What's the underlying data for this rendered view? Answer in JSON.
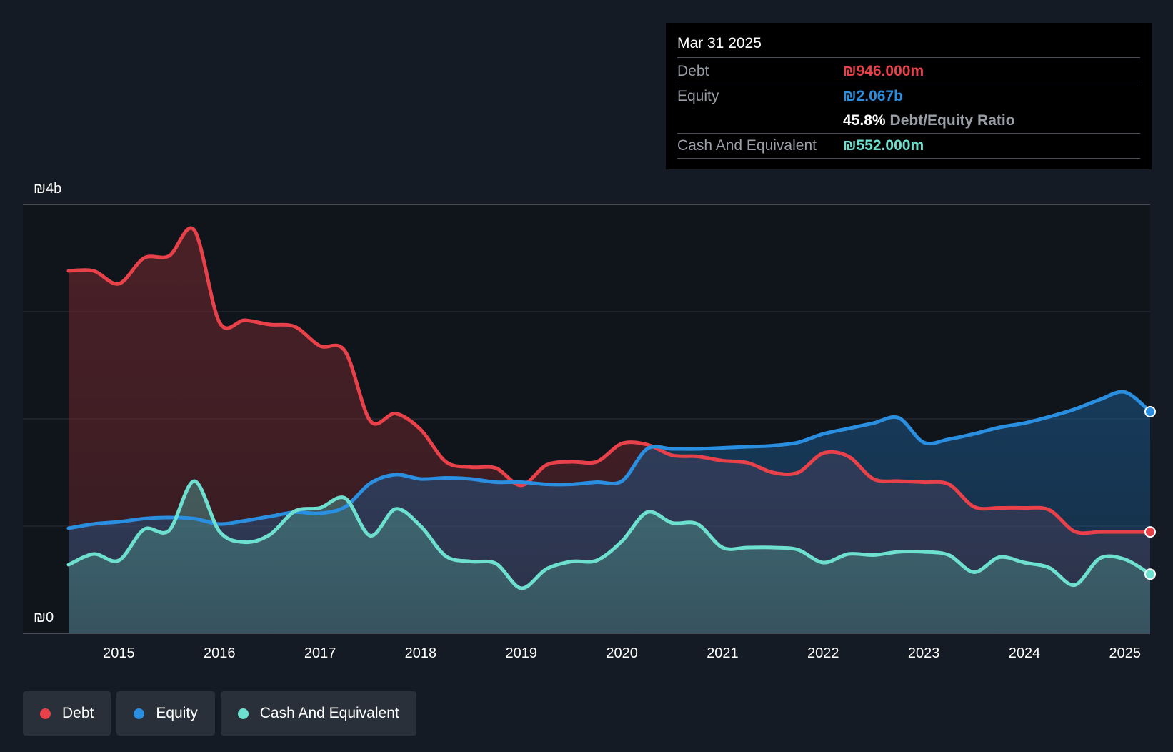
{
  "tooltip": {
    "date": "Mar 31 2025",
    "debt_label": "Debt",
    "debt_value": "₪946.000m",
    "equity_label": "Equity",
    "equity_value": "₪2.067b",
    "ratio_value": "45.8%",
    "ratio_label": "Debt/Equity Ratio",
    "cash_label": "Cash And Equivalent",
    "cash_value": "₪552.000m"
  },
  "legend": [
    {
      "label": "Debt",
      "color": "#e8414a"
    },
    {
      "label": "Equity",
      "color": "#2a8fe0"
    },
    {
      "label": "Cash And Equivalent",
      "color": "#6ee0cf"
    }
  ],
  "chart_data": {
    "type": "area",
    "y_top_label": "₪4b",
    "y_bottom_label": "₪0",
    "ylim": [
      0,
      4
    ],
    "y_unit": "billions ₪",
    "x_range": [
      2014.5,
      2025.25
    ],
    "x_ticks": [
      "2015",
      "2016",
      "2017",
      "2018",
      "2019",
      "2020",
      "2021",
      "2022",
      "2023",
      "2024",
      "2025"
    ],
    "grid": true,
    "series": [
      {
        "name": "Debt",
        "color": "#e8414a",
        "x": [
          2014.5,
          2014.75,
          2015.0,
          2015.25,
          2015.5,
          2015.75,
          2016.0,
          2016.25,
          2016.5,
          2016.75,
          2017.0,
          2017.25,
          2017.5,
          2017.75,
          2018.0,
          2018.25,
          2018.5,
          2018.75,
          2019.0,
          2019.25,
          2019.5,
          2019.75,
          2020.0,
          2020.25,
          2020.5,
          2020.75,
          2021.0,
          2021.25,
          2021.5,
          2021.75,
          2022.0,
          2022.25,
          2022.5,
          2022.75,
          2023.0,
          2023.25,
          2023.5,
          2023.75,
          2024.0,
          2024.25,
          2024.5,
          2024.75,
          2025.0,
          2025.25
        ],
        "values": [
          3.38,
          3.38,
          3.26,
          3.5,
          3.52,
          3.76,
          2.9,
          2.92,
          2.88,
          2.86,
          2.68,
          2.63,
          1.98,
          2.05,
          1.9,
          1.6,
          1.55,
          1.54,
          1.38,
          1.57,
          1.6,
          1.6,
          1.77,
          1.76,
          1.66,
          1.65,
          1.61,
          1.59,
          1.5,
          1.5,
          1.68,
          1.65,
          1.44,
          1.42,
          1.41,
          1.39,
          1.18,
          1.17,
          1.17,
          1.15,
          0.95,
          0.946,
          0.946,
          0.946
        ]
      },
      {
        "name": "Equity",
        "color": "#2a8fe0",
        "x": [
          2014.5,
          2014.75,
          2015.0,
          2015.25,
          2015.5,
          2015.75,
          2016.0,
          2016.25,
          2016.5,
          2016.75,
          2017.0,
          2017.25,
          2017.5,
          2017.75,
          2018.0,
          2018.25,
          2018.5,
          2018.75,
          2019.0,
          2019.25,
          2019.5,
          2019.75,
          2020.0,
          2020.25,
          2020.5,
          2020.75,
          2021.0,
          2021.25,
          2021.5,
          2021.75,
          2022.0,
          2022.25,
          2022.5,
          2022.75,
          2023.0,
          2023.25,
          2023.5,
          2023.75,
          2024.0,
          2024.25,
          2024.5,
          2024.75,
          2025.0,
          2025.25
        ],
        "values": [
          0.98,
          1.02,
          1.04,
          1.07,
          1.08,
          1.07,
          1.02,
          1.05,
          1.09,
          1.13,
          1.12,
          1.18,
          1.4,
          1.48,
          1.44,
          1.45,
          1.44,
          1.41,
          1.41,
          1.39,
          1.39,
          1.41,
          1.42,
          1.72,
          1.72,
          1.72,
          1.73,
          1.74,
          1.75,
          1.78,
          1.86,
          1.91,
          1.96,
          2.01,
          1.78,
          1.81,
          1.86,
          1.92,
          1.96,
          2.02,
          2.09,
          2.18,
          2.25,
          2.067
        ]
      },
      {
        "name": "Cash And Equivalent",
        "color": "#6ee0cf",
        "x": [
          2014.5,
          2014.75,
          2015.0,
          2015.25,
          2015.5,
          2015.75,
          2016.0,
          2016.25,
          2016.5,
          2016.75,
          2017.0,
          2017.25,
          2017.5,
          2017.75,
          2018.0,
          2018.25,
          2018.5,
          2018.75,
          2019.0,
          2019.25,
          2019.5,
          2019.75,
          2020.0,
          2020.25,
          2020.5,
          2020.75,
          2021.0,
          2021.25,
          2021.5,
          2021.75,
          2022.0,
          2022.25,
          2022.5,
          2022.75,
          2023.0,
          2023.25,
          2023.5,
          2023.75,
          2024.0,
          2024.25,
          2024.5,
          2024.75,
          2025.0,
          2025.25
        ],
        "values": [
          0.64,
          0.74,
          0.68,
          0.97,
          0.96,
          1.42,
          0.95,
          0.85,
          0.92,
          1.14,
          1.17,
          1.26,
          0.91,
          1.16,
          1.0,
          0.72,
          0.67,
          0.65,
          0.42,
          0.6,
          0.67,
          0.68,
          0.86,
          1.13,
          1.03,
          1.02,
          0.8,
          0.8,
          0.8,
          0.78,
          0.66,
          0.74,
          0.73,
          0.76,
          0.76,
          0.73,
          0.57,
          0.71,
          0.66,
          0.61,
          0.45,
          0.7,
          0.69,
          0.552
        ]
      }
    ]
  }
}
